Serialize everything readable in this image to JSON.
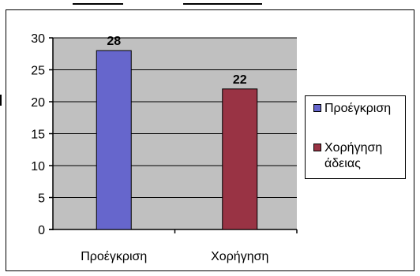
{
  "chart_data": {
    "type": "bar",
    "title": "",
    "xlabel": "",
    "ylabel": "",
    "categories": [
      "Προέγκριση",
      "Χορήγηση"
    ],
    "series": [
      {
        "name": "Προέγκριση",
        "values": [
          28,
          null
        ],
        "color": "#6666cc"
      },
      {
        "name": "Χορήγηση άδειας",
        "values": [
          null,
          22
        ],
        "color": "#993344"
      }
    ],
    "values": [
      28,
      22
    ],
    "data_labels": [
      "28",
      "22"
    ],
    "ylim": [
      0,
      30
    ],
    "yticks": [
      0,
      5,
      10,
      15,
      20,
      25,
      30
    ],
    "ytick_labels": [
      "0",
      "5",
      "10",
      "15",
      "20",
      "25",
      "30"
    ],
    "plot_background": "#c0c0c0",
    "grid": true,
    "legend_position": "right"
  },
  "legend": {
    "items": [
      {
        "line1": "Προέγκριση",
        "line2": "",
        "color": "#6666cc"
      },
      {
        "line1": "Χορήγηση",
        "line2": "άδειας",
        "color": "#993344"
      }
    ]
  }
}
